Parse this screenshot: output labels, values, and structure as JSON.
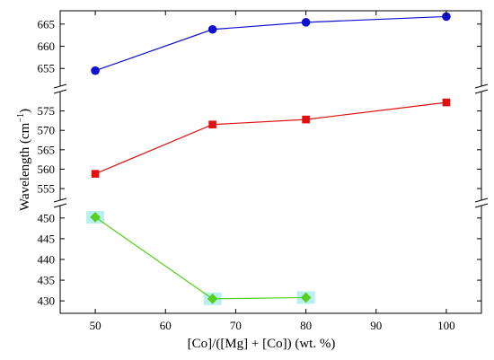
{
  "chart_data": {
    "type": "line",
    "title": "",
    "xlabel": "[Co]/([Mg] + [Co]) (wt. %)",
    "ylabel": {
      "main": "Wavelength (cm",
      "superscript": "−1",
      "close": ")"
    },
    "xlim": [
      45,
      105
    ],
    "x_ticks": [
      50,
      60,
      70,
      80,
      90,
      100
    ],
    "axis_break": true,
    "grid": false,
    "legend": "none",
    "segments": [
      {
        "ylim": [
          651,
          668
        ],
        "ticks": [
          655,
          660,
          665
        ]
      },
      {
        "ylim": [
          552,
          580
        ],
        "ticks": [
          555,
          560,
          565,
          570,
          575
        ]
      },
      {
        "ylim": [
          427,
          453
        ],
        "ticks": [
          430,
          435,
          440,
          445,
          450
        ]
      }
    ],
    "series": [
      {
        "marker": "circle",
        "color": "#1010d0",
        "segment": 0,
        "x": [
          50,
          66.7,
          80,
          100
        ],
        "y": [
          654.5,
          663.8,
          665.4,
          666.7
        ]
      },
      {
        "marker": "square",
        "color": "#e01010",
        "segment": 1,
        "x": [
          50,
          66.7,
          80,
          100
        ],
        "y": [
          558.8,
          571.5,
          572.8,
          577.2
        ]
      },
      {
        "marker": "diamond",
        "color": "#55d020",
        "highlight": "#b8f0f0",
        "segment": 2,
        "x": [
          50,
          66.7,
          80
        ],
        "y": [
          450.2,
          430.5,
          430.8
        ]
      }
    ]
  }
}
